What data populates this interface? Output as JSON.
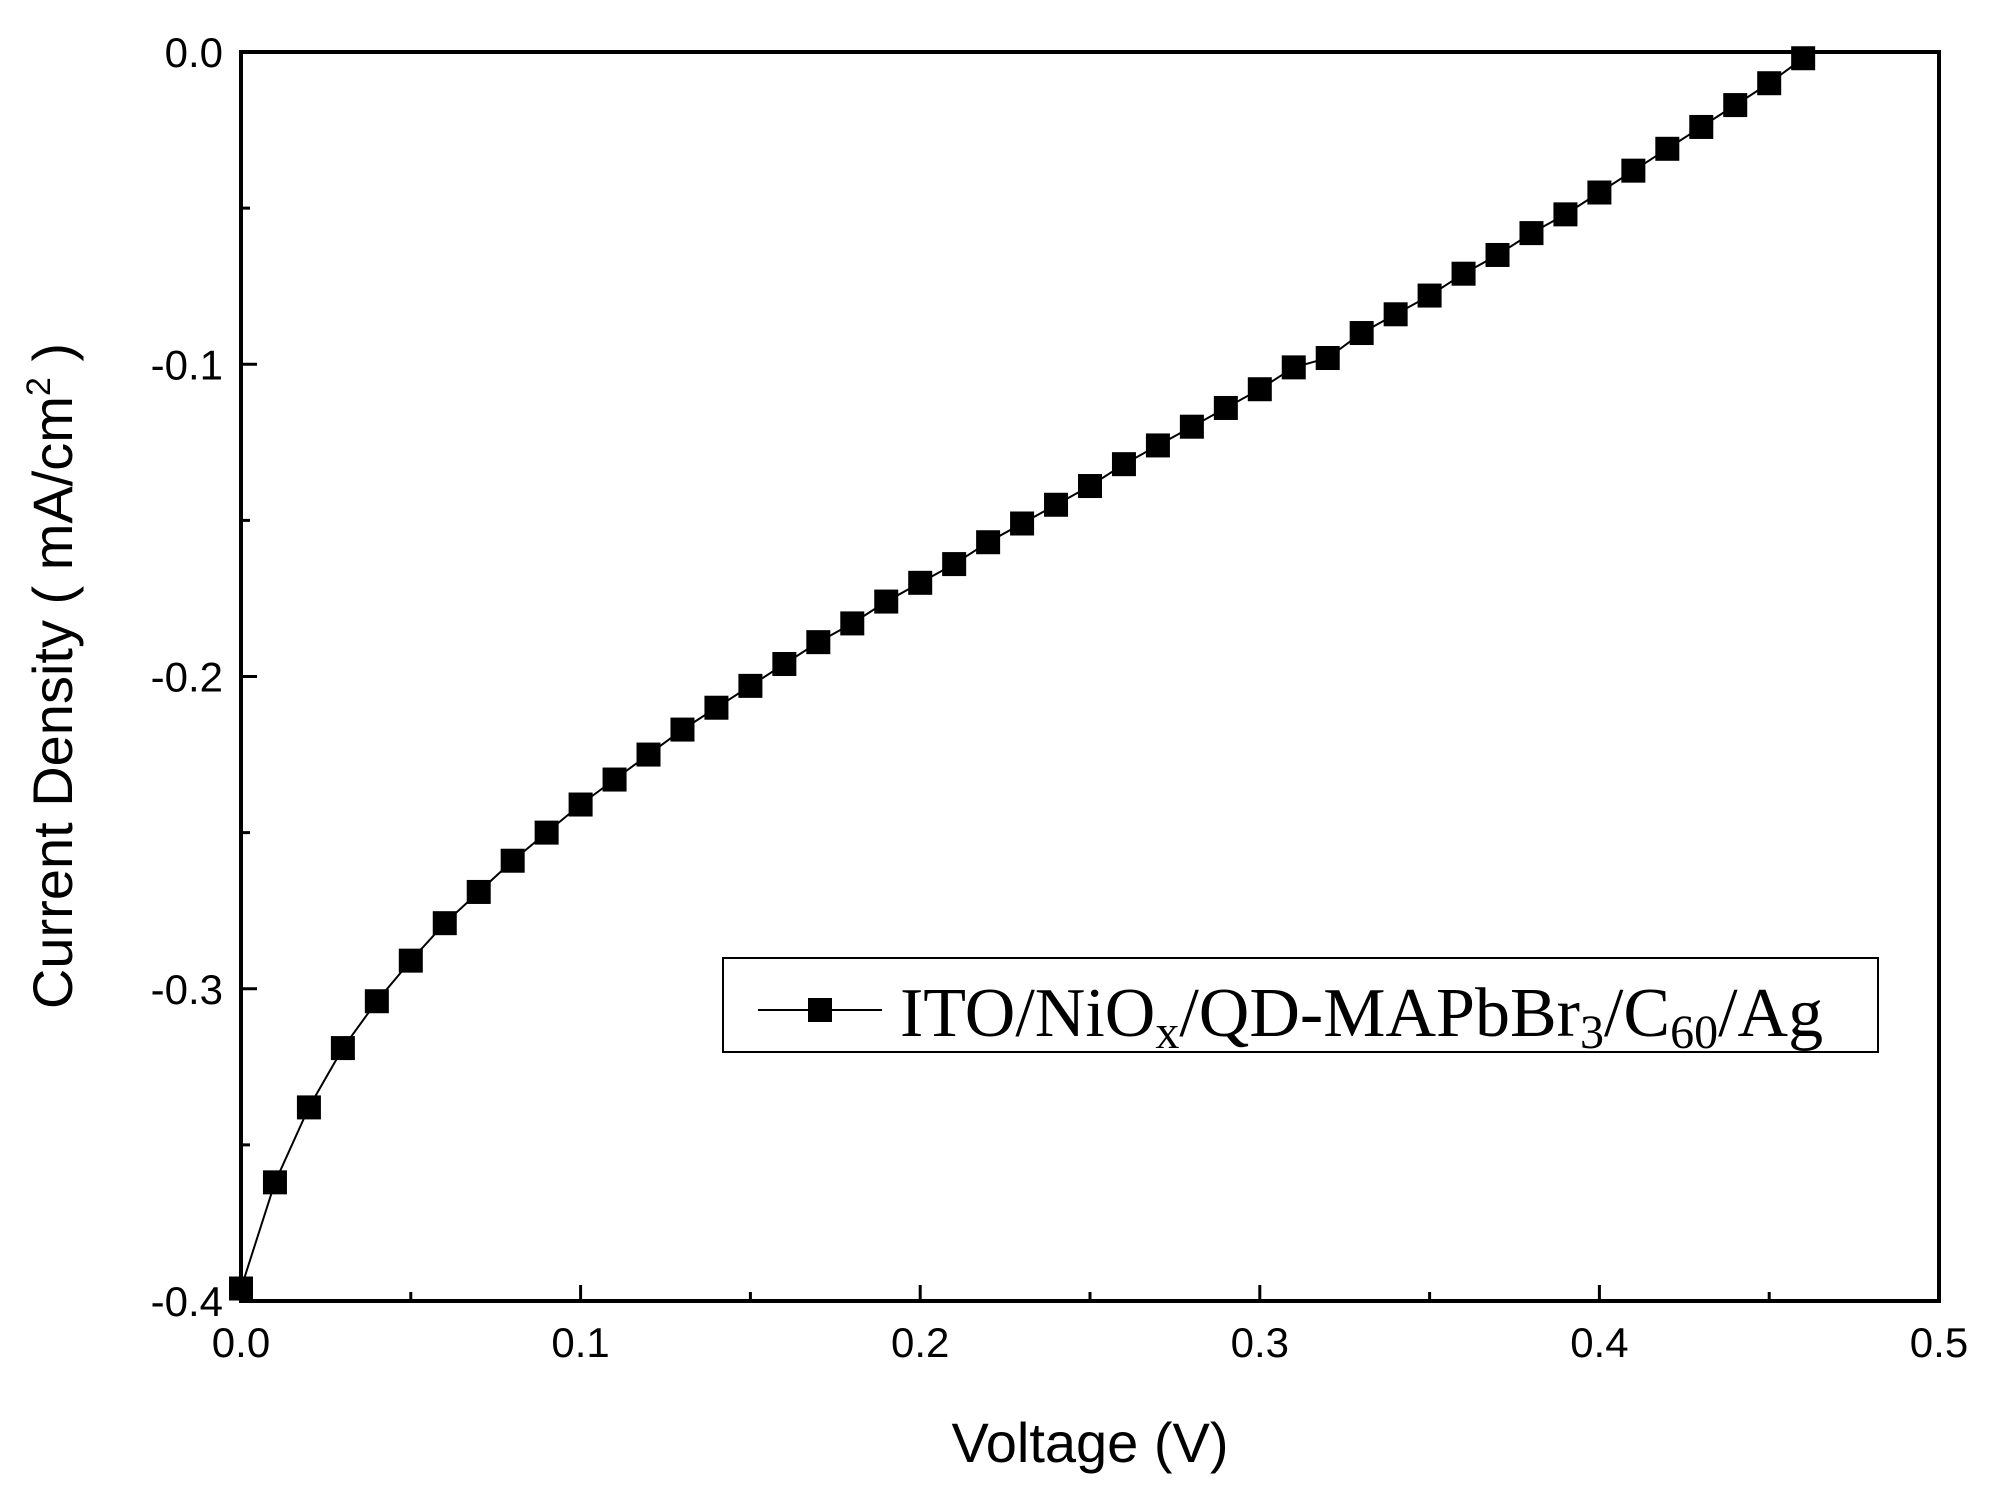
{
  "chart_data": {
    "type": "scatter",
    "title": "",
    "xlabel": "Voltage (V)",
    "ylabel": "Current Density ( mA/cm",
    "ylabel_sup": "2",
    "ylabel_close": " )",
    "xlim": [
      0.0,
      0.5
    ],
    "ylim": [
      -0.4,
      0.0
    ],
    "x_ticks": [
      0.0,
      0.1,
      0.2,
      0.3,
      0.4,
      0.5
    ],
    "x_tick_labels": [
      "0.0",
      "0.1",
      "0.2",
      "0.3",
      "0.4",
      "0.5"
    ],
    "y_ticks": [
      0.0,
      -0.1,
      -0.2,
      -0.3,
      -0.4
    ],
    "y_tick_labels": [
      "0.0",
      "-0.1",
      "-0.2",
      "-0.3",
      "-0.4"
    ],
    "grid": false,
    "legend_position": "center-right",
    "series": [
      {
        "name": "ITO/NiOx/QD-MAPbBr3/C60/Ag",
        "legend_parts": [
          "ITO/NiO",
          "x",
          "/QD-MAPbBr",
          "3",
          "/C",
          "60",
          "/Ag"
        ],
        "marker": "square",
        "color": "#000000",
        "x": [
          0.0,
          0.01,
          0.02,
          0.03,
          0.04,
          0.05,
          0.06,
          0.07,
          0.08,
          0.09,
          0.1,
          0.11,
          0.12,
          0.13,
          0.14,
          0.15,
          0.16,
          0.17,
          0.18,
          0.19,
          0.2,
          0.21,
          0.22,
          0.23,
          0.24,
          0.25,
          0.26,
          0.27,
          0.28,
          0.29,
          0.3,
          0.31,
          0.32,
          0.33,
          0.34,
          0.35,
          0.36,
          0.37,
          0.38,
          0.39,
          0.4,
          0.41,
          0.42,
          0.43,
          0.44,
          0.45,
          0.46
        ],
        "y": [
          -0.396,
          -0.362,
          -0.338,
          -0.319,
          -0.304,
          -0.291,
          -0.279,
          -0.269,
          -0.259,
          -0.25,
          -0.241,
          -0.233,
          -0.225,
          -0.217,
          -0.21,
          -0.203,
          -0.196,
          -0.189,
          -0.183,
          -0.176,
          -0.17,
          -0.164,
          -0.157,
          -0.151,
          -0.145,
          -0.139,
          -0.132,
          -0.126,
          -0.12,
          -0.114,
          -0.108,
          -0.101,
          -0.098,
          -0.09,
          -0.084,
          -0.078,
          -0.071,
          -0.065,
          -0.058,
          -0.052,
          -0.045,
          -0.038,
          -0.031,
          -0.024,
          -0.017,
          -0.01,
          -0.002
        ]
      }
    ]
  }
}
